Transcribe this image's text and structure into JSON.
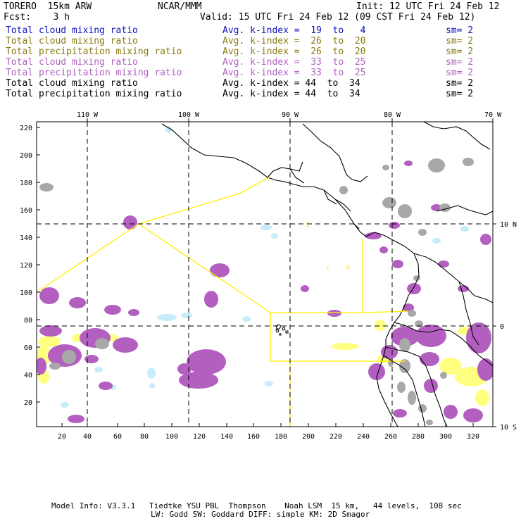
{
  "header": {
    "model": "TORERO  15km ARW",
    "org": "NCAR/MMM",
    "init": "Init: 12 UTC Fri 24 Feb 12",
    "fcst": "Fcst:    3 h",
    "valid": "Valid: 15 UTC Fri 24 Feb 12 (09 CST Fri 24 Feb 12)"
  },
  "legend": [
    {
      "field": "Total cloud mixing ratio",
      "index": "Avg. k-index =  19  to   4",
      "sm": "sm= 2",
      "color": "#1010c0"
    },
    {
      "field": "Total cloud mixing ratio",
      "index": "Avg. k-index =  26  to  20",
      "sm": "sm= 2",
      "color": "#8a7a10"
    },
    {
      "field": "Total precipitation mixing ratio",
      "index": "Avg. k-index =  26  to  20",
      "sm": "sm= 2",
      "color": "#8a7a10"
    },
    {
      "field": "Total cloud mixing ratio",
      "index": "Avg. k-index =  33  to  25",
      "sm": "sm= 2",
      "color": "#b060c0"
    },
    {
      "field": "Total precipitation mixing ratio",
      "index": "Avg. k-index =  33  to  25",
      "sm": "sm= 2",
      "color": "#b060c0"
    },
    {
      "field": "Total cloud mixing ratio",
      "index": "Avg. k-index = 44  to  34",
      "sm": "sm= 2",
      "color": "#000000"
    },
    {
      "field": "Total precipitation mixing ratio",
      "index": "Avg. k-index = 44  to  34",
      "sm": "sm= 2",
      "color": "#000000"
    }
  ],
  "map": {
    "lon_labels": [
      "110 W",
      "100 W",
      "90 W",
      "80 W",
      "70 W"
    ],
    "lat_labels": [
      "10 N",
      "0",
      "10 S"
    ],
    "y_ticks": [
      "220",
      "200",
      "180",
      "160",
      "140",
      "120",
      "100",
      "80",
      "60",
      "40",
      "20"
    ],
    "x_ticks": [
      "20",
      "40",
      "60",
      "80",
      "100",
      "120",
      "140",
      "160",
      "180",
      "200",
      "220",
      "240",
      "260",
      "280",
      "300",
      "320"
    ],
    "colors": {
      "light_blue": "#c8ecfa",
      "yellow": "#ffff80",
      "purple": "#b25fc0",
      "gray": "#a8a8a8",
      "boundary": "#ffee00"
    }
  },
  "footer": {
    "line1": "Model Info: V3.3.1   Tiedtke YSU PBL  Thompson    Noah LSM  15 km,   44 levels,  108 sec",
    "line2": "LW: Godd SW: Goddard DIFF: simple KM: 2D Smagor"
  }
}
